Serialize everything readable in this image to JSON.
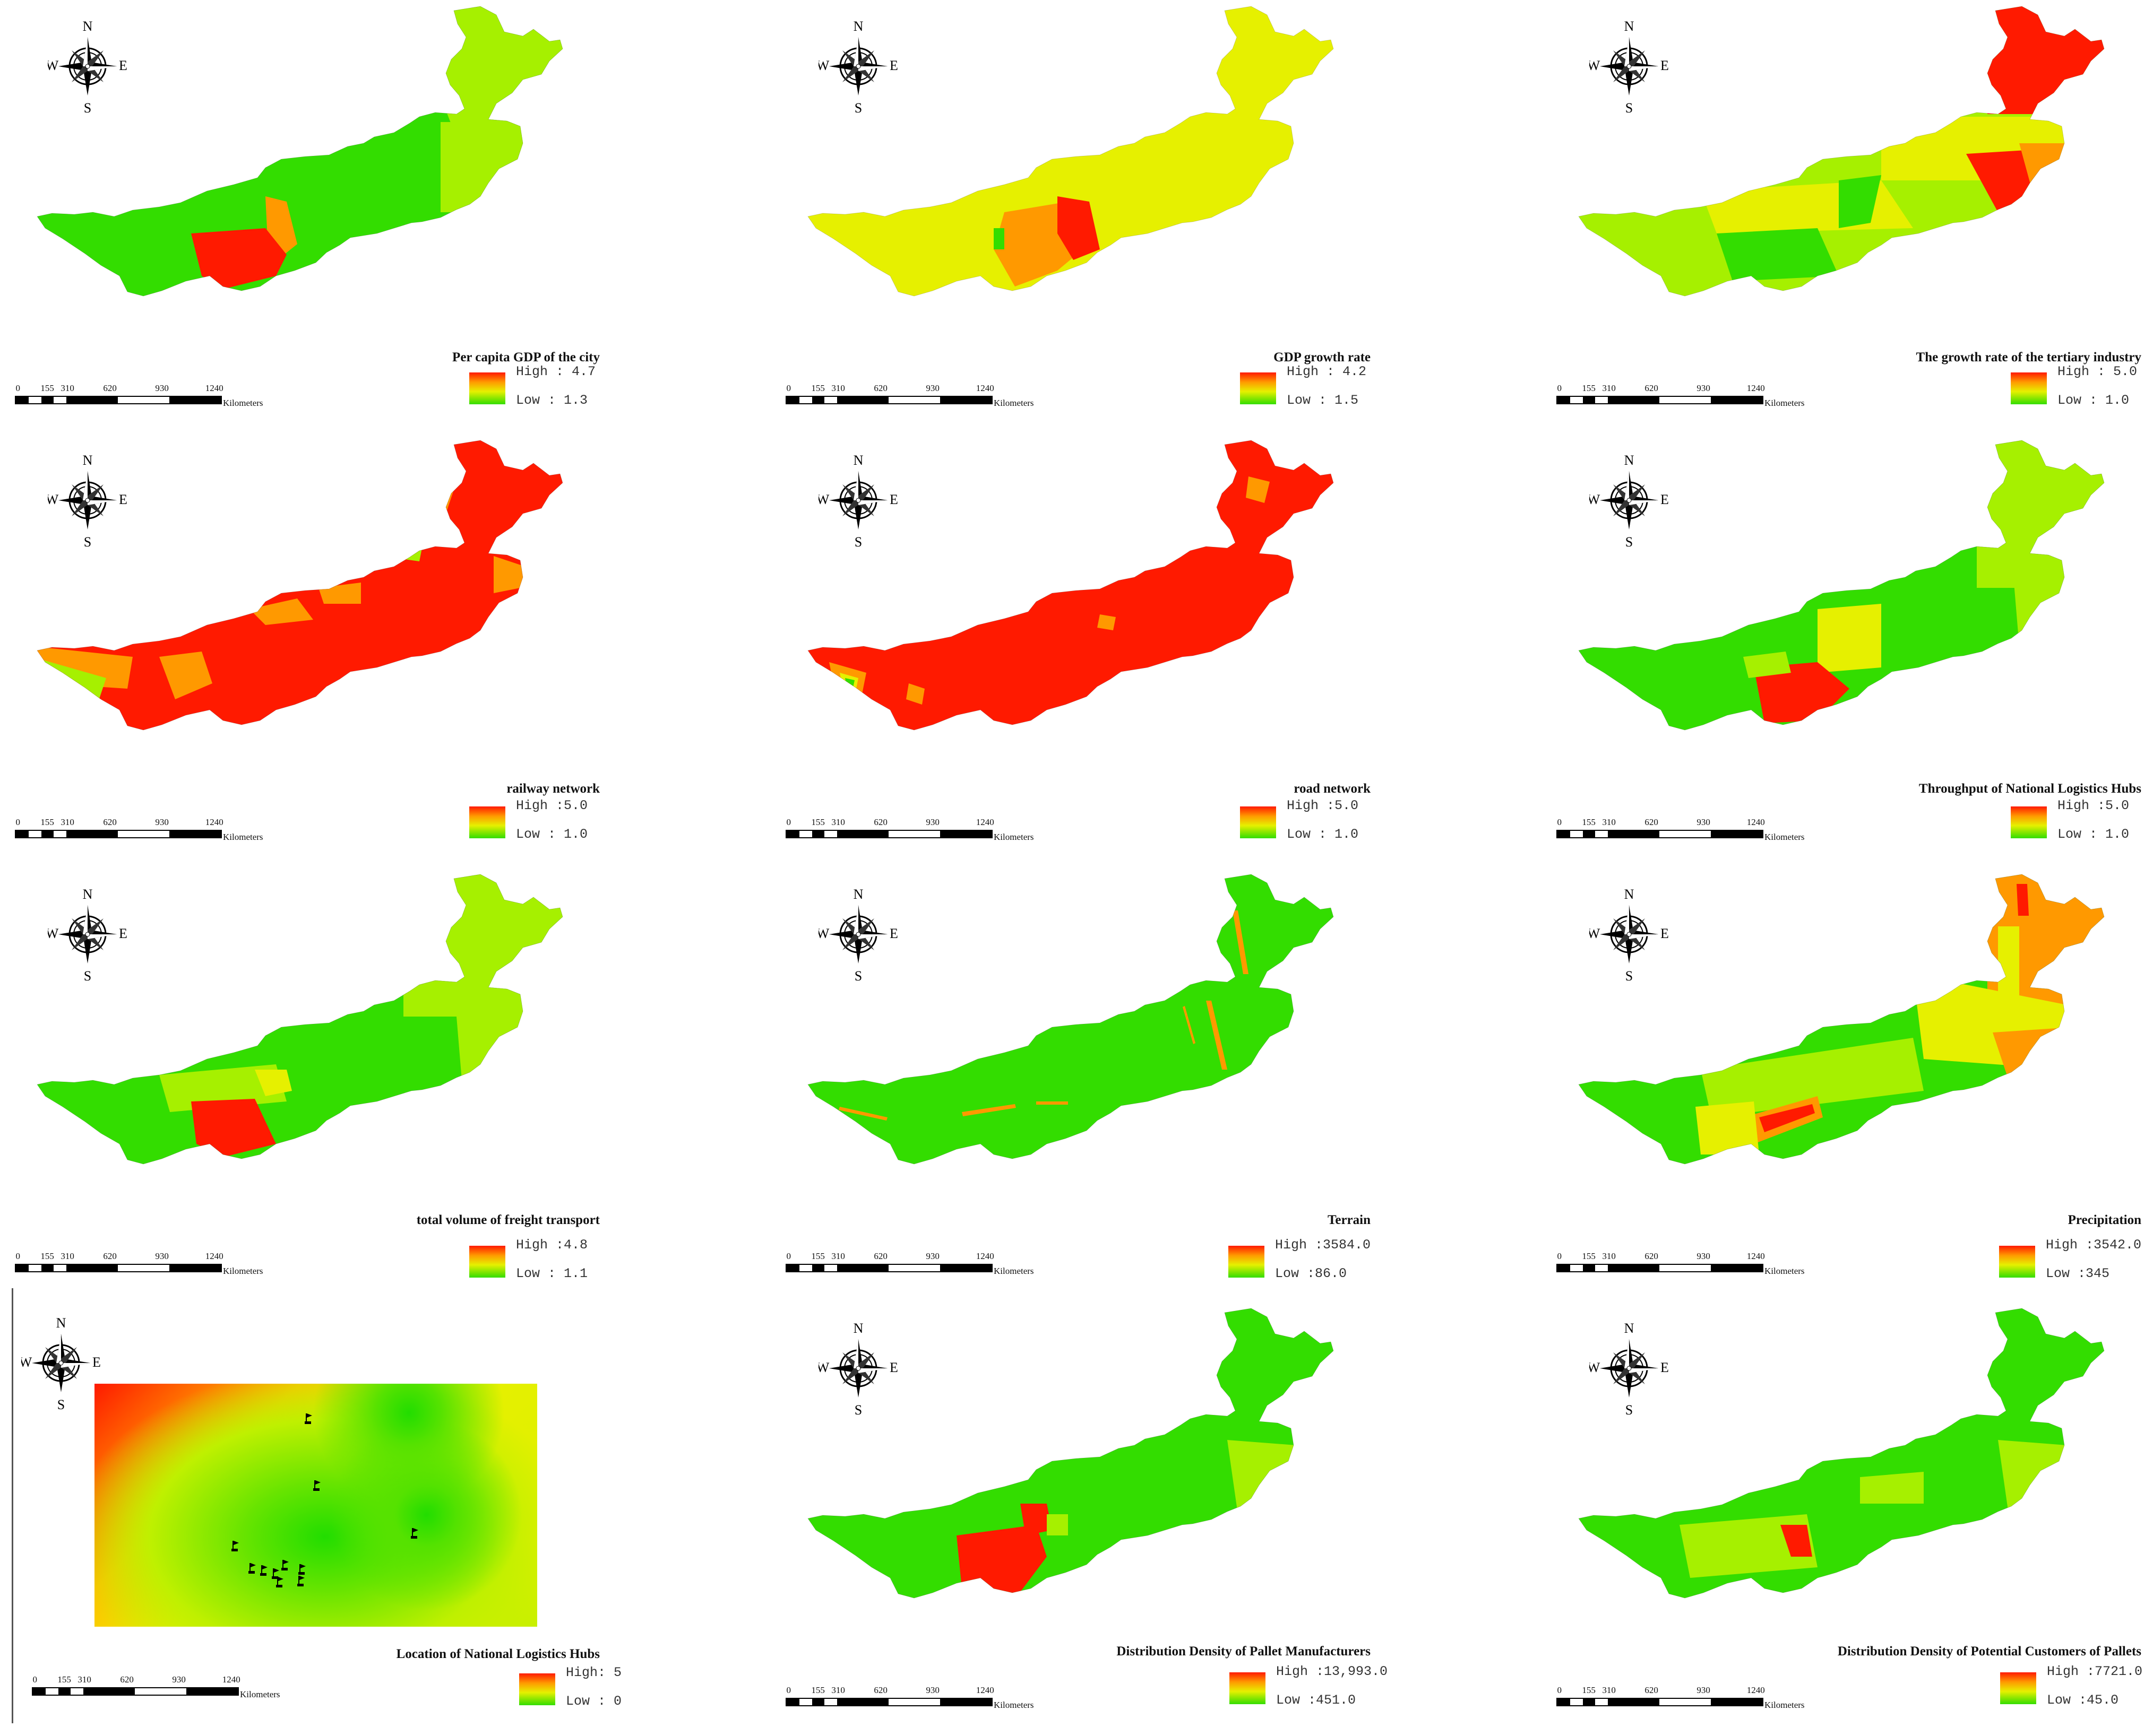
{
  "compass": {
    "n": "N",
    "s": "S",
    "e": "E",
    "w": "W"
  },
  "scale": {
    "ticks": [
      "0",
      "155",
      "310",
      "620",
      "930",
      "1240"
    ],
    "unit": "Kilometers"
  },
  "scale_last": {
    "ticks": [
      "0",
      "155",
      "310",
      "620",
      "930",
      "1240"
    ],
    "unit": "Kilometers"
  },
  "colors": {
    "high": "#ff1a00",
    "mid_high": "#ff9900",
    "mid": "#e6f000",
    "mid_low": "#a6f000",
    "low": "#33dd00"
  },
  "panels": [
    {
      "title": "Per capita GDP of the city",
      "high": "High : 4.7",
      "low": "Low : 1.3"
    },
    {
      "title": "GDP growth rate",
      "high": "High : 4.2",
      "low": "Low : 1.5"
    },
    {
      "title": "The growth rate of the tertiary industry",
      "high": "High : 5.0",
      "low": "Low : 1.0"
    },
    {
      "title": "railway network",
      "high": "High :5.0",
      "low": "Low : 1.0"
    },
    {
      "title": "road network",
      "high": "High :5.0",
      "low": "Low : 1.0"
    },
    {
      "title": "Throughput of National Logistics Hubs",
      "high": "High :5.0",
      "low": "Low : 1.0"
    },
    {
      "title": "total volume of freight transport",
      "high": "High :4.8",
      "low": "Low : 1.1"
    },
    {
      "title": "Terrain",
      "high": "High :3584.0",
      "low": "Low :86.0"
    },
    {
      "title": "Precipitation",
      "high": "High :3542.0",
      "low": "Low :345"
    },
    {
      "title": "Location of National Logistics Hubs",
      "high": "High: 5",
      "low": "Low : 0"
    },
    {
      "title": "Distribution Density of Pallet Manufacturers",
      "high": "High :13,993.0",
      "low": "Low :451.0"
    },
    {
      "title": "Distribution Density of Potential Customers of Pallets",
      "high": "High :7721.0",
      "low": "Low :45.0"
    }
  ]
}
